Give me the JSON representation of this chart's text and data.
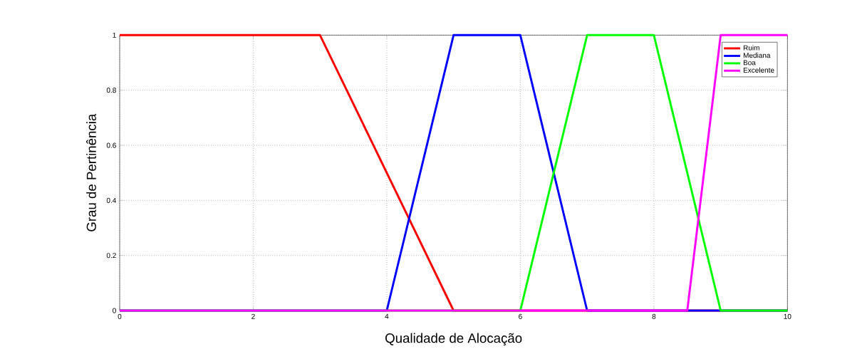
{
  "chart_data": {
    "type": "line",
    "xlabel": "Qualidade de Alocação",
    "ylabel": "Grau de Pertinência",
    "xlim": [
      0,
      10
    ],
    "ylim": [
      0,
      1
    ],
    "xticks": [
      0,
      2,
      4,
      6,
      8,
      10
    ],
    "yticks": [
      0,
      0.2,
      0.4,
      0.6,
      0.8,
      1
    ],
    "grid": true,
    "legend": "top right",
    "line_style": "solid",
    "marker": "none",
    "series": [
      {
        "name": "Ruim",
        "color": "#ff0000",
        "x": [
          0,
          3,
          5,
          10
        ],
        "values": [
          1,
          1,
          0,
          0
        ]
      },
      {
        "name": "Mediana",
        "color": "#0000ff",
        "x": [
          0,
          4,
          5,
          6,
          7,
          10
        ],
        "values": [
          0,
          0,
          1,
          1,
          0,
          0
        ]
      },
      {
        "name": "Boa",
        "color": "#00ff00",
        "x": [
          0,
          6,
          7,
          8,
          9,
          10
        ],
        "values": [
          0,
          0,
          1,
          1,
          0,
          0
        ]
      },
      {
        "name": "Excelente",
        "color": "#ff00ff",
        "x": [
          0,
          8.5,
          9,
          10
        ],
        "values": [
          0,
          0,
          1,
          1
        ]
      }
    ]
  }
}
